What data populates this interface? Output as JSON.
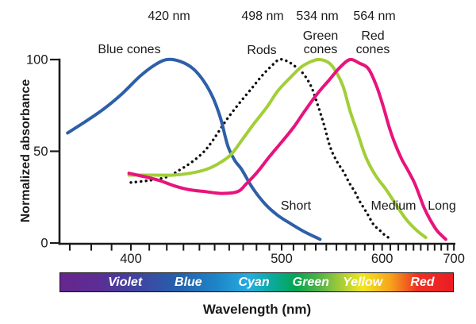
{
  "labels": {
    "peak_blue": "420 nm",
    "peak_rods": "498 nm",
    "peak_green": "534 nm",
    "peak_red": "564 nm",
    "x_axis_title": "Wavelength (nm)",
    "y_axis_title": "Normalized absorbance"
  },
  "spectrum_bar": {
    "labels": [
      "Violet",
      "Blue",
      "Cyan",
      "Green",
      "Yellow",
      "Red"
    ],
    "label_color": "#ffffff",
    "gradient": [
      [
        0,
        "#67268e"
      ],
      [
        9,
        "#5c2d94"
      ],
      [
        20,
        "#3f45a0"
      ],
      [
        30,
        "#2561ad"
      ],
      [
        40,
        "#1d86c8"
      ],
      [
        48,
        "#27ace0"
      ],
      [
        54,
        "#0aaa9d"
      ],
      [
        60,
        "#05a551"
      ],
      [
        66,
        "#54b448"
      ],
      [
        71,
        "#a0ca3a"
      ],
      [
        77,
        "#f2e71f"
      ],
      [
        84,
        "#f6a41c"
      ],
      [
        91,
        "#ee3124"
      ],
      [
        100,
        "#ec1c24"
      ]
    ]
  },
  "chart_data": {
    "type": "line",
    "title": "",
    "xlabel": "Wavelength (nm)",
    "ylabel": "Normalized absorbance",
    "x_scale": "reciprocal-wavelength (frequency-linear)",
    "xlim": [
      365,
      702
    ],
    "ylim": [
      0,
      100
    ],
    "y_ticks": [
      100,
      50,
      0
    ],
    "x_ticks_labeled": [
      400,
      500,
      600,
      700
    ],
    "x_minor_ticks_nm": {
      "from": 370,
      "to": 700,
      "step": 10
    },
    "axis_color": "#1a1a1a",
    "grid": false,
    "series": [
      {
        "name": "Blue cones",
        "peak_nm": 420,
        "receptor": "Short",
        "style": "solid",
        "color": "#2e5fa8",
        "points": [
          [
            369,
            60
          ],
          [
            377,
            66
          ],
          [
            386,
            73
          ],
          [
            395,
            81
          ],
          [
            405,
            91
          ],
          [
            413,
            97
          ],
          [
            420,
            100
          ],
          [
            428,
            99
          ],
          [
            436,
            95
          ],
          [
            443,
            88
          ],
          [
            449,
            79
          ],
          [
            454,
            68
          ],
          [
            459,
            53
          ],
          [
            464,
            45
          ],
          [
            469,
            40
          ],
          [
            477,
            30
          ],
          [
            487,
            21
          ],
          [
            497,
            15
          ],
          [
            509,
            10
          ],
          [
            520,
            6
          ],
          [
            534,
            2
          ]
        ]
      },
      {
        "name": "Rods",
        "peak_nm": 498,
        "receptor": "",
        "style": "dotted",
        "color": "#111111",
        "points": [
          [
            400,
            33
          ],
          [
            409,
            34
          ],
          [
            420,
            36
          ],
          [
            428,
            40
          ],
          [
            435,
            44
          ],
          [
            442,
            49
          ],
          [
            448,
            55
          ],
          [
            458,
            67
          ],
          [
            467,
            76
          ],
          [
            476,
            84
          ],
          [
            484,
            91
          ],
          [
            491,
            96
          ],
          [
            498,
            100
          ],
          [
            505,
            99
          ],
          [
            512,
            96
          ],
          [
            519,
            92
          ],
          [
            526,
            85
          ],
          [
            532,
            75
          ],
          [
            538,
            64
          ],
          [
            544,
            52
          ],
          [
            551,
            44
          ],
          [
            557,
            39
          ],
          [
            563,
            33
          ],
          [
            569,
            28
          ],
          [
            574,
            23
          ],
          [
            579,
            19
          ],
          [
            584,
            15
          ],
          [
            590,
            10
          ],
          [
            597,
            7
          ],
          [
            604,
            4
          ],
          [
            612,
            2
          ]
        ]
      },
      {
        "name": "Green cones",
        "peak_nm": 534,
        "receptor": "Medium",
        "style": "solid",
        "color": "#a2ce38",
        "points": [
          [
            399,
            37
          ],
          [
            412,
            37
          ],
          [
            424,
            37
          ],
          [
            434,
            38
          ],
          [
            444,
            40
          ],
          [
            452,
            43
          ],
          [
            461,
            48
          ],
          [
            470,
            57
          ],
          [
            478,
            65
          ],
          [
            488,
            74
          ],
          [
            497,
            83
          ],
          [
            507,
            90
          ],
          [
            517,
            96
          ],
          [
            526,
            99
          ],
          [
            534,
            100
          ],
          [
            543,
            98
          ],
          [
            550,
            93
          ],
          [
            557,
            85
          ],
          [
            564,
            72
          ],
          [
            572,
            60
          ],
          [
            581,
            47
          ],
          [
            592,
            37
          ],
          [
            605,
            29
          ],
          [
            617,
            21
          ],
          [
            630,
            13
          ],
          [
            644,
            7
          ],
          [
            657,
            3
          ]
        ]
      },
      {
        "name": "Red cones",
        "peak_nm": 564,
        "receptor": "Long",
        "style": "solid",
        "color": "#e8137c",
        "points": [
          [
            399,
            38
          ],
          [
            408,
            36
          ],
          [
            416,
            34
          ],
          [
            425,
            31
          ],
          [
            434,
            29
          ],
          [
            444,
            28
          ],
          [
            455,
            27
          ],
          [
            466,
            28
          ],
          [
            472,
            32
          ],
          [
            481,
            39
          ],
          [
            490,
            47
          ],
          [
            500,
            55
          ],
          [
            510,
            63
          ],
          [
            520,
            72
          ],
          [
            531,
            81
          ],
          [
            543,
            89
          ],
          [
            554,
            96
          ],
          [
            564,
            100
          ],
          [
            574,
            98
          ],
          [
            584,
            95
          ],
          [
            593,
            86
          ],
          [
            601,
            75
          ],
          [
            608,
            64
          ],
          [
            615,
            55
          ],
          [
            624,
            46
          ],
          [
            632,
            40
          ],
          [
            641,
            33
          ],
          [
            648,
            26
          ],
          [
            655,
            19
          ],
          [
            663,
            13
          ],
          [
            673,
            7
          ],
          [
            681,
            4
          ],
          [
            687,
            2
          ]
        ]
      }
    ]
  }
}
